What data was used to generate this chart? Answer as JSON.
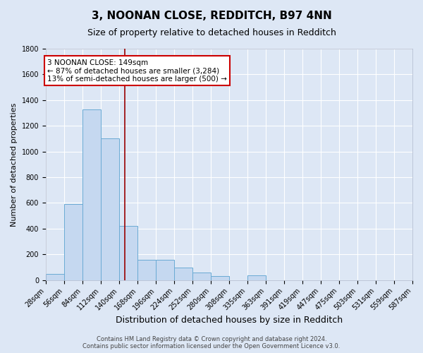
{
  "title": "3, NOONAN CLOSE, REDDITCH, B97 4NN",
  "subtitle": "Size of property relative to detached houses in Redditch",
  "xlabel": "Distribution of detached houses by size in Redditch",
  "ylabel": "Number of detached properties",
  "bin_starts": [
    28,
    56,
    84,
    112,
    140,
    168,
    196,
    224,
    252,
    280,
    308,
    335,
    363,
    391,
    419,
    447,
    475,
    503,
    531,
    559
  ],
  "bin_width": 28,
  "bar_heights": [
    50,
    590,
    1330,
    1100,
    420,
    160,
    160,
    95,
    60,
    30,
    0,
    35,
    0,
    0,
    0,
    0,
    0,
    0,
    0,
    0
  ],
  "bar_color": "#c5d8f0",
  "bar_edge_color": "#6aaad4",
  "background_color": "#dde7f5",
  "grid_color": "#ffffff",
  "red_line_x": 149,
  "red_line_color": "#990000",
  "ylim": [
    0,
    1800
  ],
  "xlim": [
    28,
    587
  ],
  "xtick_labels": [
    "28sqm",
    "56sqm",
    "84sqm",
    "112sqm",
    "140sqm",
    "168sqm",
    "196sqm",
    "224sqm",
    "252sqm",
    "280sqm",
    "308sqm",
    "335sqm",
    "363sqm",
    "391sqm",
    "419sqm",
    "447sqm",
    "475sqm",
    "503sqm",
    "531sqm",
    "559sqm",
    "587sqm"
  ],
  "xtick_positions": [
    28,
    56,
    84,
    112,
    140,
    168,
    196,
    224,
    252,
    280,
    308,
    335,
    363,
    391,
    419,
    447,
    475,
    503,
    531,
    559,
    587
  ],
  "yticks": [
    0,
    200,
    400,
    600,
    800,
    1000,
    1200,
    1400,
    1600,
    1800
  ],
  "annotation_line1": "3 NOONAN CLOSE: 149sqm",
  "annotation_line2": "← 87% of detached houses are smaller (3,284)",
  "annotation_line3": "13% of semi-detached houses are larger (500) →",
  "annotation_box_facecolor": "#ffffff",
  "annotation_box_edgecolor": "#cc0000",
  "footer_line1": "Contains HM Land Registry data © Crown copyright and database right 2024.",
  "footer_line2": "Contains public sector information licensed under the Open Government Licence v3.0.",
  "title_fontsize": 11,
  "subtitle_fontsize": 9,
  "tick_label_fontsize": 7,
  "ylabel_fontsize": 8,
  "xlabel_fontsize": 9,
  "annotation_fontsize": 7.5,
  "footer_fontsize": 6
}
